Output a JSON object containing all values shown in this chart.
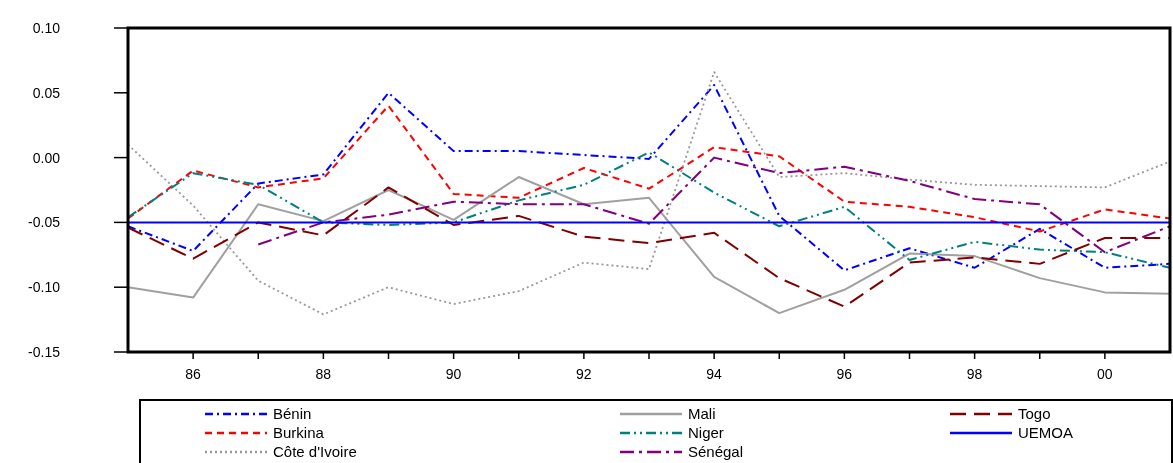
{
  "chart_data": {
    "type": "line",
    "x": [
      1985,
      1986,
      1987,
      1988,
      1989,
      1990,
      1991,
      1992,
      1993,
      1994,
      1995,
      1996,
      1997,
      1998,
      1999,
      2000,
      2001
    ],
    "xlim": [
      1985,
      2001
    ],
    "xticks": [
      {
        "value": 1986,
        "label": "86"
      },
      {
        "value": 1987,
        "label": null
      },
      {
        "value": 1988,
        "label": "88"
      },
      {
        "value": 1989,
        "label": null
      },
      {
        "value": 1990,
        "label": "90"
      },
      {
        "value": 1991,
        "label": null
      },
      {
        "value": 1992,
        "label": "92"
      },
      {
        "value": 1993,
        "label": null
      },
      {
        "value": 1994,
        "label": "94"
      },
      {
        "value": 1995,
        "label": null
      },
      {
        "value": 1996,
        "label": "96"
      },
      {
        "value": 1997,
        "label": null
      },
      {
        "value": 1998,
        "label": "98"
      },
      {
        "value": 1999,
        "label": null
      },
      {
        "value": 2000,
        "label": "00"
      }
    ],
    "ylim": [
      -0.15,
      0.1
    ],
    "yticks": [
      {
        "value": -0.15,
        "label": "-0.15"
      },
      {
        "value": -0.1,
        "label": "-0.10"
      },
      {
        "value": -0.05,
        "label": "-0.05"
      },
      {
        "value": 0,
        "label": "0.00"
      },
      {
        "value": 0.05,
        "label": "0.05"
      },
      {
        "value": 0.1,
        "label": "0.10"
      }
    ],
    "grid": false,
    "legend": "bottom",
    "series": [
      {
        "name": "Bénin",
        "color": "#0000ff",
        "line_style": "dashdot",
        "values": [
          -0.053,
          -0.072,
          -0.02,
          -0.013,
          0.05,
          0.005,
          0.005,
          0.002,
          -0.001,
          0.056,
          -0.045,
          -0.087,
          -0.07,
          -0.085,
          -0.055,
          -0.085,
          -0.082
        ]
      },
      {
        "name": "Burkina",
        "color": "#ff0000",
        "line_style": "dashed",
        "values": [
          -0.047,
          -0.01,
          -0.023,
          -0.016,
          0.04,
          -0.028,
          -0.031,
          -0.008,
          -0.024,
          0.008,
          0.001,
          -0.034,
          -0.038,
          -0.046,
          -0.057,
          -0.04,
          -0.047
        ]
      },
      {
        "name": "Côte d'Ivoire",
        "color": "#999999",
        "line_style": "dotted",
        "values": [
          0.01,
          -0.037,
          -0.095,
          -0.121,
          -0.1,
          -0.113,
          -0.103,
          -0.081,
          -0.086,
          0.066,
          -0.015,
          -0.012,
          -0.017,
          -0.021,
          -0.022,
          -0.023,
          -0.003
        ]
      },
      {
        "name": "Mali",
        "color": "#a0a0a0",
        "line_style": "solid",
        "values": [
          -0.1,
          -0.108,
          -0.036,
          -0.049,
          -0.025,
          -0.048,
          -0.015,
          -0.036,
          -0.031,
          -0.092,
          -0.12,
          -0.102,
          -0.074,
          -0.076,
          -0.093,
          -0.104,
          -0.105
        ]
      },
      {
        "name": "Niger",
        "color": "#008080",
        "line_style": "dashdotdot",
        "values": [
          -0.046,
          -0.012,
          -0.021,
          -0.05,
          -0.052,
          -0.05,
          -0.033,
          -0.021,
          0.004,
          -0.027,
          -0.053,
          -0.038,
          -0.079,
          -0.065,
          -0.071,
          -0.073,
          -0.085
        ]
      },
      {
        "name": "Sénégal",
        "color": "#800080",
        "line_style": "longdashdot",
        "values": [
          null,
          null,
          -0.067,
          -0.05,
          -0.044,
          -0.034,
          -0.036,
          -0.036,
          -0.051,
          0.0,
          -0.012,
          -0.007,
          -0.018,
          -0.032,
          -0.036,
          -0.073,
          -0.053
        ]
      },
      {
        "name": "Togo",
        "color": "#800000",
        "line_style": "longdash",
        "values": [
          -0.054,
          -0.078,
          -0.05,
          -0.06,
          -0.023,
          -0.052,
          -0.045,
          -0.061,
          -0.066,
          -0.058,
          -0.093,
          -0.115,
          -0.081,
          -0.077,
          -0.082,
          -0.062,
          -0.062
        ]
      },
      {
        "name": "UEMOA",
        "color": "#0000ff",
        "line_style": "solid",
        "values": [
          -0.05,
          -0.05,
          -0.05,
          -0.05,
          -0.05,
          -0.05,
          -0.05,
          -0.05,
          -0.05,
          -0.05,
          -0.05,
          -0.05,
          -0.05,
          -0.05,
          -0.05,
          -0.05,
          -0.05
        ]
      }
    ]
  }
}
